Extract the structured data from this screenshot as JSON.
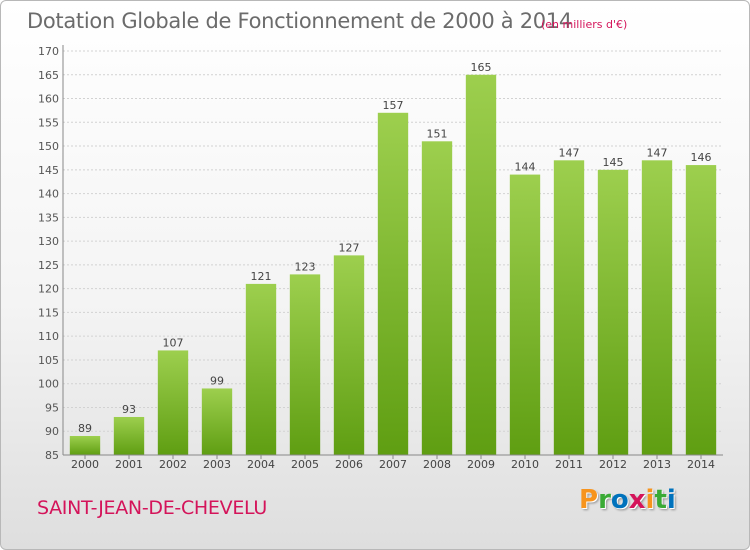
{
  "header": {
    "title": "Dotation Globale de Fonctionnement de 2000 à 2014",
    "subtitle": "(en milliers d'€)"
  },
  "footer": {
    "commune": "SAINT-JEAN-DE-CHEVELU",
    "logo": "Proxiti"
  },
  "colors": {
    "bar_top": "#9dcf4e",
    "bar_bottom": "#5f9e12",
    "accent": "#d4145a",
    "logo_letters": [
      "#f7941d",
      "#3aaa35",
      "#0072bc",
      "#d4145a",
      "#f7941d",
      "#3aaa35",
      "#0072bc"
    ]
  },
  "chart_data": {
    "type": "bar",
    "categories": [
      "2000",
      "2001",
      "2002",
      "2003",
      "2004",
      "2005",
      "2006",
      "2007",
      "2008",
      "2009",
      "2010",
      "2011",
      "2012",
      "2013",
      "2014"
    ],
    "values": [
      89,
      93,
      107,
      99,
      121,
      123,
      127,
      157,
      151,
      165,
      144,
      147,
      145,
      147,
      146
    ],
    "ylim": [
      85,
      170
    ],
    "ytick_step": 5,
    "grid": true
  }
}
